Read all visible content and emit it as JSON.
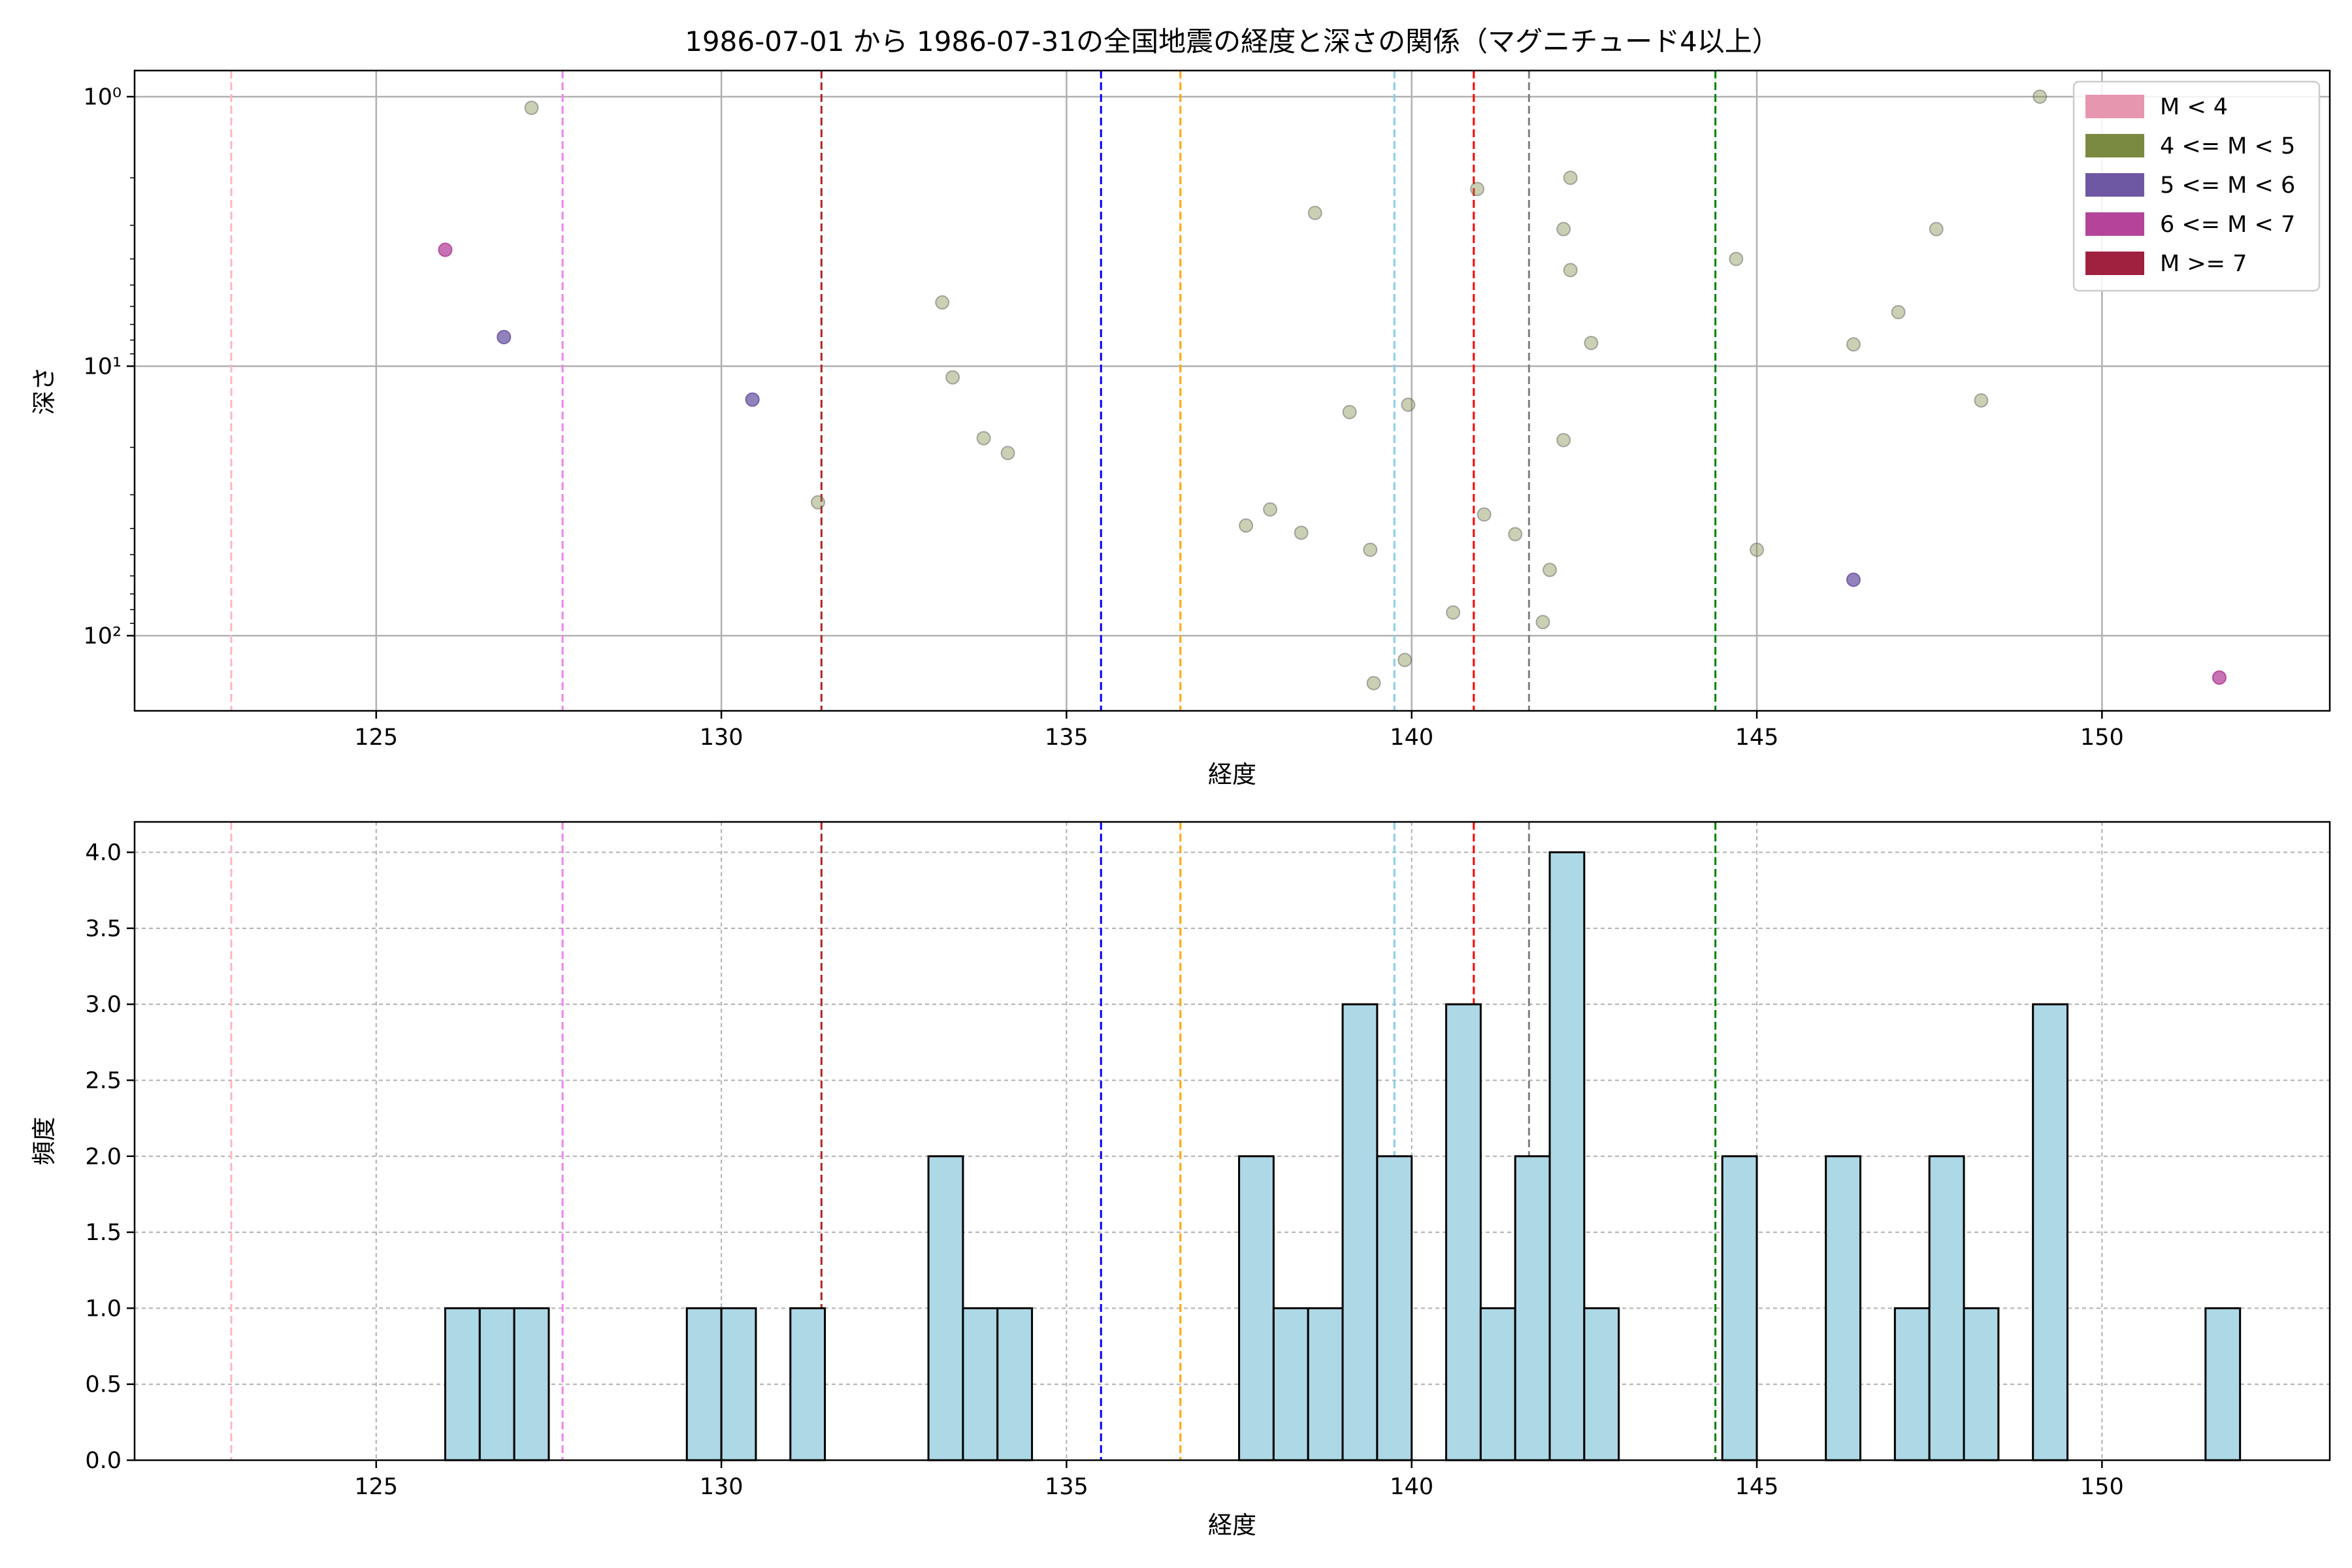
{
  "figure_title": "1986-07-01 から 1986-07-31の全国地震の経度と深さの関係（マグニチュード4以上）",
  "chart_data": [
    {
      "type": "scatter",
      "title": "1986-07-01 から 1986-07-31の全国地震の経度と深さの関係（マグニチュード4以上）",
      "xlabel": "経度",
      "ylabel": "深さ",
      "xlim": [
        121.5,
        153.3
      ],
      "ylim": [
        190,
        0.8
      ],
      "y_scale": "log",
      "y_inverted": true,
      "x_ticks": [
        125,
        130,
        135,
        140,
        145,
        150
      ],
      "y_ticks": [
        {
          "value": 1,
          "label": "10⁰"
        },
        {
          "value": 10,
          "label": "10¹"
        },
        {
          "value": 100,
          "label": "10²"
        }
      ],
      "grid": true,
      "legend_position": "top-right",
      "legend": [
        {
          "label": "M < 4",
          "color": "#e796b0"
        },
        {
          "label": "4 <= M < 5",
          "color": "#7a8a40"
        },
        {
          "label": "5 <= M < 6",
          "color": "#6e58a4"
        },
        {
          "label": "6 <= M < 7",
          "color": "#b4449a"
        },
        {
          "label": "M >= 7",
          "color": "#a0203f"
        }
      ],
      "vertical_lines": [
        {
          "x": 122.9,
          "color": "#ffb6c1"
        },
        {
          "x": 127.7,
          "color": "#ee82ee"
        },
        {
          "x": 131.45,
          "color": "#b22222"
        },
        {
          "x": 135.5,
          "color": "#0000ff"
        },
        {
          "x": 136.65,
          "color": "#ffa500"
        },
        {
          "x": 139.75,
          "color": "#87ceeb"
        },
        {
          "x": 140.9,
          "color": "#ff0000"
        },
        {
          "x": 141.7,
          "color": "#808080"
        },
        {
          "x": 144.4,
          "color": "#008000"
        }
      ],
      "points": [
        {
          "x": 127.25,
          "y": 1.1,
          "class": "4 <= M < 5"
        },
        {
          "x": 126.0,
          "y": 3.7,
          "class": "6 <= M < 7"
        },
        {
          "x": 126.85,
          "y": 7.8,
          "class": "5 <= M < 6"
        },
        {
          "x": 130.45,
          "y": 13.3,
          "class": "5 <= M < 6"
        },
        {
          "x": 131.4,
          "y": 32,
          "class": "4 <= M < 5"
        },
        {
          "x": 133.2,
          "y": 5.8,
          "class": "4 <= M < 5"
        },
        {
          "x": 133.35,
          "y": 11,
          "class": "4 <= M < 5"
        },
        {
          "x": 133.8,
          "y": 18.5,
          "class": "4 <= M < 5"
        },
        {
          "x": 134.15,
          "y": 21,
          "class": "4 <= M < 5"
        },
        {
          "x": 137.6,
          "y": 39,
          "class": "4 <= M < 5"
        },
        {
          "x": 137.95,
          "y": 34,
          "class": "4 <= M < 5"
        },
        {
          "x": 138.4,
          "y": 41.5,
          "class": "4 <= M < 5"
        },
        {
          "x": 138.6,
          "y": 2.7,
          "class": "4 <= M < 5"
        },
        {
          "x": 139.1,
          "y": 14.8,
          "class": "4 <= M < 5"
        },
        {
          "x": 139.4,
          "y": 48,
          "class": "4 <= M < 5"
        },
        {
          "x": 139.45,
          "y": 150,
          "class": "4 <= M < 5"
        },
        {
          "x": 139.9,
          "y": 123,
          "class": "4 <= M < 5"
        },
        {
          "x": 139.95,
          "y": 13.9,
          "class": "4 <= M < 5"
        },
        {
          "x": 140.6,
          "y": 82,
          "class": "4 <= M < 5"
        },
        {
          "x": 140.95,
          "y": 2.2,
          "class": "4 <= M < 5"
        },
        {
          "x": 141.05,
          "y": 35.5,
          "class": "4 <= M < 5"
        },
        {
          "x": 141.5,
          "y": 42,
          "class": "4 <= M < 5"
        },
        {
          "x": 141.9,
          "y": 89,
          "class": "4 <= M < 5"
        },
        {
          "x": 142.0,
          "y": 57,
          "class": "4 <= M < 5"
        },
        {
          "x": 142.2,
          "y": 3.1,
          "class": "4 <= M < 5"
        },
        {
          "x": 142.2,
          "y": 18.8,
          "class": "4 <= M < 5"
        },
        {
          "x": 142.3,
          "y": 2.0,
          "class": "4 <= M < 5"
        },
        {
          "x": 142.3,
          "y": 4.4,
          "class": "4 <= M < 5"
        },
        {
          "x": 142.6,
          "y": 8.2,
          "class": "4 <= M < 5"
        },
        {
          "x": 144.7,
          "y": 4.0,
          "class": "4 <= M < 5"
        },
        {
          "x": 145.0,
          "y": 48,
          "class": "4 <= M < 5"
        },
        {
          "x": 146.4,
          "y": 8.3,
          "class": "4 <= M < 5"
        },
        {
          "x": 146.4,
          "y": 62,
          "class": "5 <= M < 6"
        },
        {
          "x": 147.05,
          "y": 6.3,
          "class": "4 <= M < 5"
        },
        {
          "x": 147.6,
          "y": 3.1,
          "class": "4 <= M < 5"
        },
        {
          "x": 148.25,
          "y": 13.4,
          "class": "4 <= M < 5"
        },
        {
          "x": 149.1,
          "y": 1.0,
          "class": "4 <= M < 5"
        },
        {
          "x": 151.7,
          "y": 143,
          "class": "6 <= M < 7"
        }
      ]
    },
    {
      "type": "bar",
      "title": "",
      "xlabel": "経度",
      "ylabel": "頻度",
      "xlim": [
        121.5,
        153.3
      ],
      "ylim": [
        0,
        4.2
      ],
      "x_ticks": [
        125,
        130,
        135,
        140,
        145,
        150
      ],
      "y_ticks": [
        0.0,
        0.5,
        1.0,
        1.5,
        2.0,
        2.5,
        3.0,
        3.5,
        4.0
      ],
      "grid": true,
      "bar_color": "#add8e6",
      "vertical_lines": [
        {
          "x": 122.9,
          "color": "#ffb6c1"
        },
        {
          "x": 127.7,
          "color": "#ee82ee"
        },
        {
          "x": 131.45,
          "color": "#b22222"
        },
        {
          "x": 135.5,
          "color": "#0000ff"
        },
        {
          "x": 136.65,
          "color": "#ffa500"
        },
        {
          "x": 139.75,
          "color": "#87ceeb"
        },
        {
          "x": 140.9,
          "color": "#ff0000"
        },
        {
          "x": 141.7,
          "color": "#808080"
        },
        {
          "x": 144.4,
          "color": "#008000"
        }
      ],
      "bins": [
        {
          "start": 126.0,
          "end": 126.5,
          "count": 1
        },
        {
          "start": 126.5,
          "end": 127.0,
          "count": 1
        },
        {
          "start": 127.0,
          "end": 127.5,
          "count": 1
        },
        {
          "start": 129.5,
          "end": 130.0,
          "count": 1
        },
        {
          "start": 130.0,
          "end": 130.5,
          "count": 1
        },
        {
          "start": 131.0,
          "end": 131.5,
          "count": 1
        },
        {
          "start": 133.0,
          "end": 133.5,
          "count": 2
        },
        {
          "start": 133.5,
          "end": 134.0,
          "count": 1
        },
        {
          "start": 134.0,
          "end": 134.5,
          "count": 1
        },
        {
          "start": 137.5,
          "end": 138.0,
          "count": 2
        },
        {
          "start": 138.0,
          "end": 138.5,
          "count": 1
        },
        {
          "start": 138.5,
          "end": 139.0,
          "count": 1
        },
        {
          "start": 139.0,
          "end": 139.5,
          "count": 3
        },
        {
          "start": 139.5,
          "end": 140.0,
          "count": 2
        },
        {
          "start": 140.5,
          "end": 141.0,
          "count": 3
        },
        {
          "start": 141.0,
          "end": 141.5,
          "count": 1
        },
        {
          "start": 141.5,
          "end": 142.0,
          "count": 2
        },
        {
          "start": 142.0,
          "end": 142.5,
          "count": 4
        },
        {
          "start": 142.5,
          "end": 143.0,
          "count": 1
        },
        {
          "start": 144.5,
          "end": 145.0,
          "count": 2
        },
        {
          "start": 146.0,
          "end": 146.5,
          "count": 2
        },
        {
          "start": 147.0,
          "end": 147.5,
          "count": 1
        },
        {
          "start": 147.5,
          "end": 148.0,
          "count": 2
        },
        {
          "start": 148.0,
          "end": 148.5,
          "count": 1
        },
        {
          "start": 149.0,
          "end": 149.5,
          "count": 3
        },
        {
          "start": 151.5,
          "end": 152.0,
          "count": 1
        }
      ]
    }
  ]
}
